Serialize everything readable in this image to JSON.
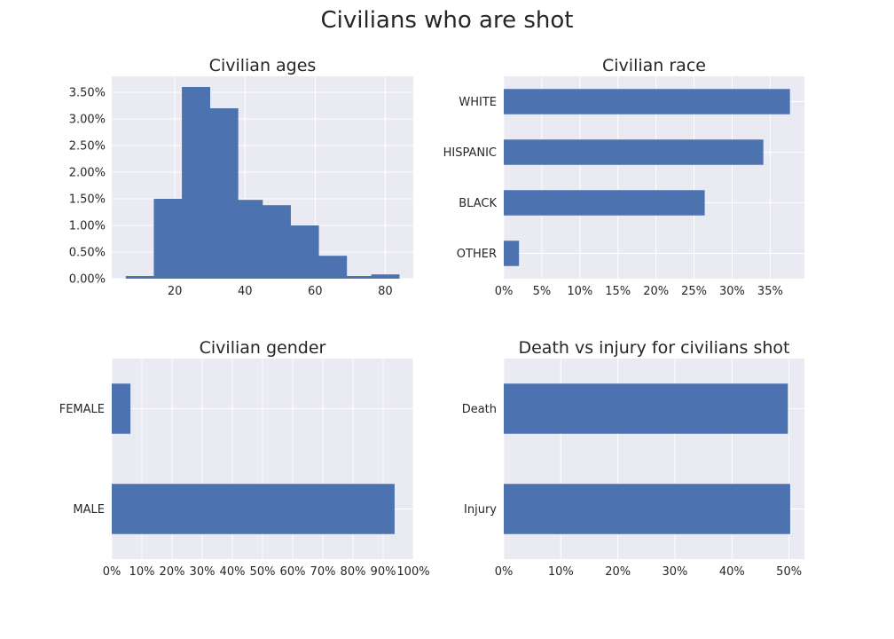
{
  "figure": {
    "title": "Civilians who are shot"
  },
  "chart_data": [
    {
      "type": "bar",
      "subtype": "histogram",
      "title": "Civilian ages",
      "xlabel": "",
      "ylabel": "",
      "bin_edges": [
        6,
        14,
        22,
        30,
        38,
        45,
        53,
        61,
        69,
        76,
        84
      ],
      "values": [
        0.0005,
        0.015,
        0.036,
        0.032,
        0.0148,
        0.0138,
        0.01,
        0.0043,
        0.0005,
        0.0008
      ],
      "xlim": [
        2,
        88
      ],
      "ylim": [
        0,
        0.038
      ],
      "xticks": [
        20,
        40,
        60,
        80
      ],
      "xtick_labels": [
        "20",
        "40",
        "60",
        "80"
      ],
      "yticks": [
        0,
        0.005,
        0.01,
        0.015,
        0.02,
        0.025,
        0.03,
        0.035
      ],
      "ytick_labels": [
        "0.00%",
        "0.50%",
        "1.00%",
        "1.50%",
        "2.00%",
        "2.50%",
        "3.00%",
        "3.50%"
      ],
      "grid": true,
      "color": "#4c72b0"
    },
    {
      "type": "bar",
      "orientation": "horizontal",
      "title": "Civilian race",
      "categories": [
        "WHITE",
        "HISPANIC",
        "BLACK",
        "OTHER"
      ],
      "values": [
        37.6,
        34.1,
        26.4,
        2.0
      ],
      "xlim": [
        0,
        39.5
      ],
      "xticks": [
        0,
        5,
        10,
        15,
        20,
        25,
        30,
        35
      ],
      "xtick_labels": [
        "0%",
        "5%",
        "10%",
        "15%",
        "20%",
        "25%",
        "30%",
        "35%"
      ],
      "grid": true,
      "color": "#4c72b0"
    },
    {
      "type": "bar",
      "orientation": "horizontal",
      "title": "Civilian gender",
      "categories": [
        "FEMALE",
        "MALE"
      ],
      "values": [
        6.2,
        93.8
      ],
      "xlim": [
        0,
        100
      ],
      "xticks": [
        0,
        10,
        20,
        30,
        40,
        50,
        60,
        70,
        80,
        90,
        100
      ],
      "xtick_labels": [
        "0%",
        "10%",
        "20%",
        "30%",
        "40%",
        "50%",
        "60%",
        "70%",
        "80%",
        "90%",
        "100%"
      ],
      "grid": true,
      "color": "#4c72b0"
    },
    {
      "type": "bar",
      "orientation": "horizontal",
      "title": "Death vs injury for civilians shot",
      "categories": [
        "Death",
        "Injury"
      ],
      "values": [
        49.8,
        50.2
      ],
      "xlim": [
        0,
        52.7
      ],
      "xticks": [
        0,
        10,
        20,
        30,
        40,
        50
      ],
      "xtick_labels": [
        "0%",
        "10%",
        "20%",
        "30%",
        "40%",
        "50%"
      ],
      "grid": true,
      "color": "#4c72b0"
    }
  ]
}
